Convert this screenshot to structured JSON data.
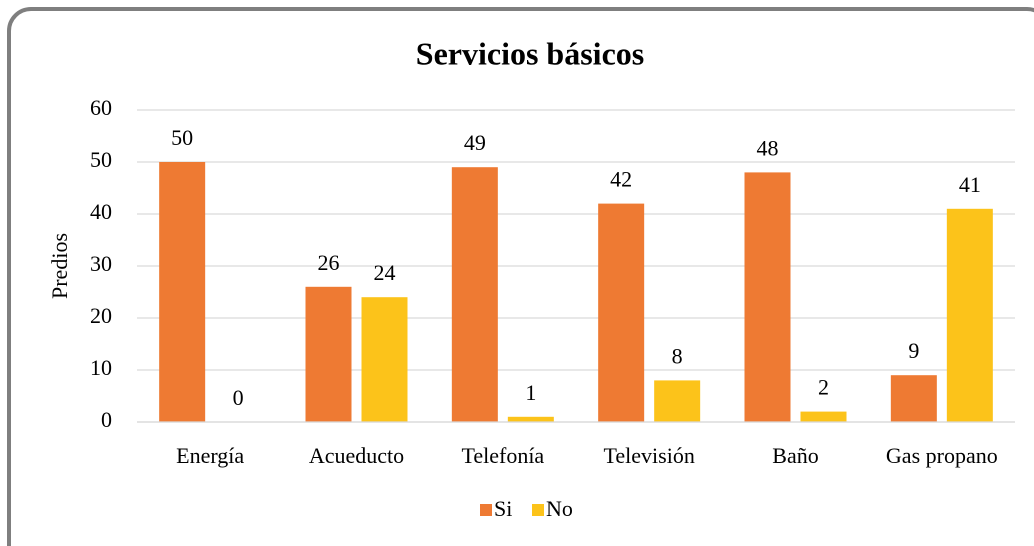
{
  "chart_data": {
    "type": "bar",
    "title": "Servicios básicos",
    "y_label": "Predios",
    "categories": [
      "Energía",
      "Acueducto",
      "Telefonía",
      "Televisión",
      "Baño",
      "Gas propano"
    ],
    "series": [
      {
        "name": "Si",
        "color": "#ee7a33",
        "values": [
          50,
          26,
          49,
          42,
          48,
          9
        ]
      },
      {
        "name": "No",
        "color": "#fcc31a",
        "values": [
          0,
          24,
          1,
          8,
          2,
          41
        ]
      }
    ],
    "ylim": [
      0,
      60
    ],
    "yticks": [
      0,
      10,
      20,
      30,
      40,
      50,
      60
    ],
    "grid": true,
    "legend": "bottom"
  }
}
